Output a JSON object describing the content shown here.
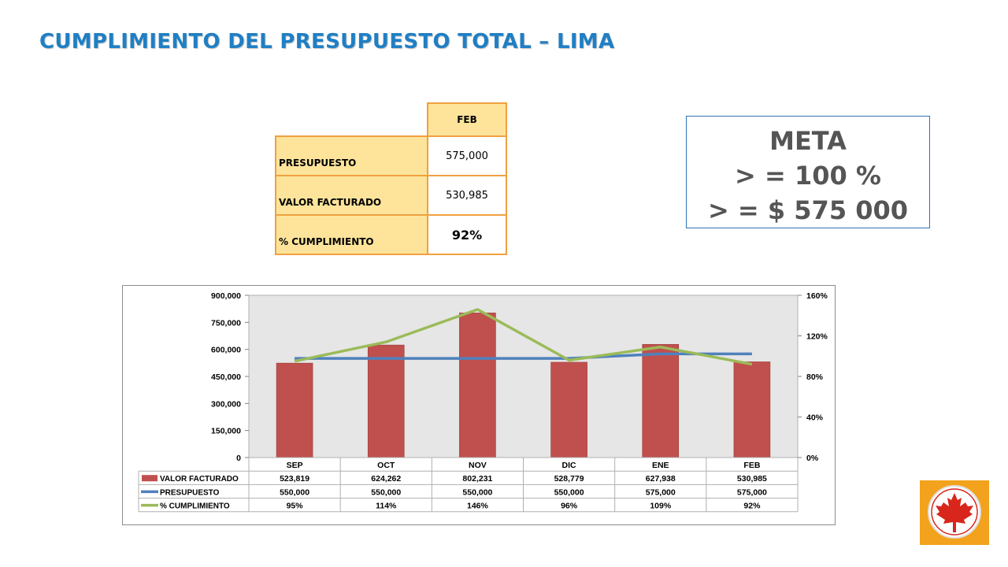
{
  "header": {
    "title": "CUMPLIMIENTO DEL PRESUPUESTO TOTAL – LIMA"
  },
  "summary_table": {
    "column_header": "FEB",
    "rows": [
      {
        "label": "PRESUPUESTO",
        "value": "575,000"
      },
      {
        "label": "VALOR FACTURADO",
        "value": "530,985"
      },
      {
        "label": "% CUMPLIMIENTO",
        "value": "92%"
      }
    ]
  },
  "meta_box": {
    "line1": "META",
    "line2": "> = 100 %",
    "line3": "> = $ 575 000"
  },
  "colors": {
    "bar": "#c0504d",
    "budget_line": "#4f81bd",
    "pct_line": "#9bbb59",
    "title": "#1f7fc4",
    "table_fill": "#fde49a",
    "table_border": "#f0a040",
    "logo_bg": "#f2a21c",
    "logo_leaf": "#d9261c"
  },
  "logo": {
    "icon": "maple-leaf-icon"
  },
  "chart_data": {
    "type": "bar",
    "categories": [
      "SEP",
      "OCT",
      "NOV",
      "DIC",
      "ENE",
      "FEB"
    ],
    "series": [
      {
        "name": "VALOR FACTURADO",
        "type": "bar",
        "axis": "left",
        "values": [
          523819,
          624262,
          802231,
          528779,
          627938,
          530985
        ],
        "labels": [
          "523,819",
          "624,262",
          "802,231",
          "528,779",
          "627,938",
          "530,985"
        ]
      },
      {
        "name": "PRESUPUESTO",
        "type": "line",
        "axis": "left",
        "values": [
          550000,
          550000,
          550000,
          550000,
          575000,
          575000
        ],
        "labels": [
          "550,000",
          "550,000",
          "550,000",
          "550,000",
          "575,000",
          "575,000"
        ]
      },
      {
        "name": "% CUMPLIMIENTO",
        "type": "line",
        "axis": "right",
        "values": [
          95,
          114,
          146,
          96,
          109,
          92
        ],
        "labels": [
          "95%",
          "114%",
          "146%",
          "96%",
          "109%",
          "92%"
        ]
      }
    ],
    "y_left": {
      "min": 0,
      "max": 900000,
      "ticks": [
        0,
        150000,
        300000,
        450000,
        600000,
        750000,
        900000
      ],
      "tick_labels": [
        "0",
        "150,000",
        "300,000",
        "450,000",
        "600,000",
        "750,000",
        "900,000"
      ]
    },
    "y_right": {
      "min": 0,
      "max": 160,
      "ticks": [
        0,
        40,
        80,
        120,
        160
      ],
      "tick_labels": [
        "0%",
        "40%",
        "80%",
        "120%",
        "160%"
      ]
    },
    "grid": false,
    "data_table": true,
    "legend": "in data table"
  }
}
